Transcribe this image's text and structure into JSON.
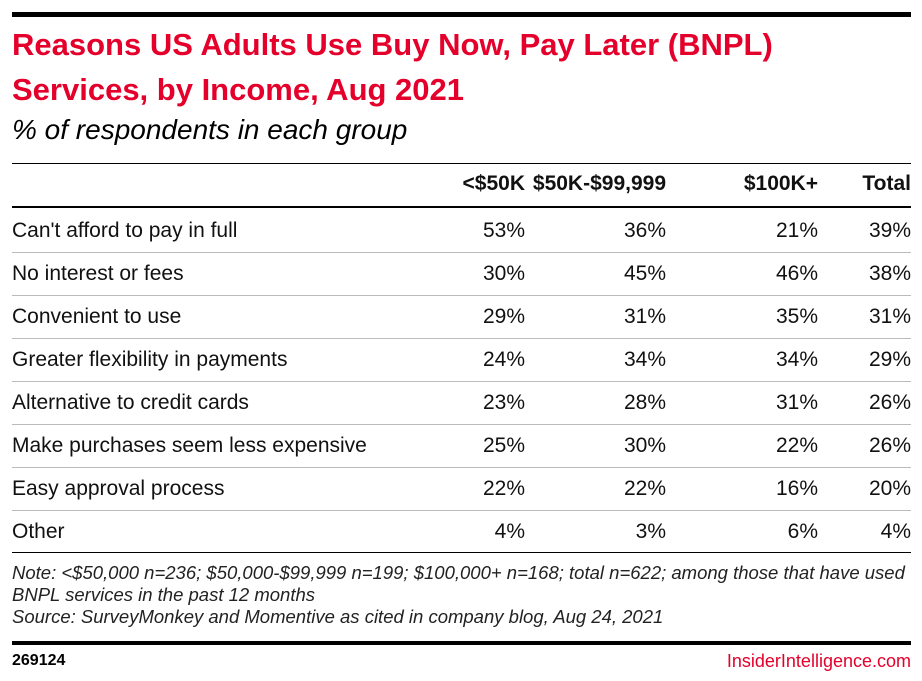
{
  "header": {
    "title": "Reasons US Adults Use Buy Now, Pay Later (BNPL) Services, by Income, Aug 2021",
    "subtitle": "% of respondents in each group"
  },
  "table": {
    "columns": [
      "<$50K",
      "$50K-$99,999",
      "$100K+",
      "Total"
    ],
    "rows": [
      [
        "Can't afford to pay in full",
        "53%",
        "36%",
        "21%",
        "39%"
      ],
      [
        "No interest or fees",
        "30%",
        "45%",
        "46%",
        "38%"
      ],
      [
        "Convenient to use",
        "29%",
        "31%",
        "35%",
        "31%"
      ],
      [
        "Greater flexibility in payments",
        "24%",
        "34%",
        "34%",
        "29%"
      ],
      [
        "Alternative to credit cards",
        "23%",
        "28%",
        "31%",
        "26%"
      ],
      [
        "Make purchases seem less expensive",
        "25%",
        "30%",
        "22%",
        "26%"
      ],
      [
        "Easy approval process",
        "22%",
        "22%",
        "16%",
        "20%"
      ],
      [
        "Other",
        "4%",
        "3%",
        "6%",
        "4%"
      ]
    ]
  },
  "notes": [
    "Note: <$50,000 n=236; $50,000-$99,999 n=199; $100,000+ n=168; total n=622; among those that have used BNPL services in the past 12 months",
    "Source: SurveyMonkey and Momentive as cited in company blog, Aug 24, 2021"
  ],
  "footer": {
    "id": "269124",
    "brand": "InsiderIntelligence.com"
  }
}
